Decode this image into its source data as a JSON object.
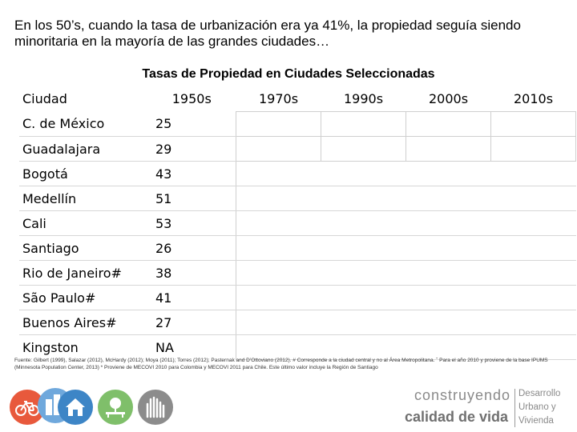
{
  "heading": "En los 50’s, cuando la tasa de urbanización era ya 41%, la propiedad seguía siendo minoritaria en la mayoría de las grandes ciudades…",
  "table": {
    "title": "Tasas de Propiedad en Ciudades Seleccionadas",
    "headers": [
      "Ciudad",
      "1950s",
      "1970s",
      "1990s",
      "2000s",
      "2010s"
    ],
    "rows": [
      {
        "city": "C. de México",
        "v1950": "25"
      },
      {
        "city": "Guadalajara",
        "v1950": "29"
      },
      {
        "city": "Bogotá",
        "v1950": "43"
      },
      {
        "city": "Medellín",
        "v1950": "51"
      },
      {
        "city": "Cali",
        "v1950": "53"
      },
      {
        "city": "Santiago",
        "v1950": "26"
      },
      {
        "city": "Rio de Janeiro#",
        "v1950": "38"
      },
      {
        "city": "São Paulo#",
        "v1950": "41"
      },
      {
        "city": "Buenos Aires#",
        "v1950": "27"
      },
      {
        "city": "Kingston",
        "v1950": "NA"
      }
    ]
  },
  "source": "Fuente: Gilbert (1999), Salazar (2012), McHardy (2012); Moya (2011); Torres (2012); Pasternak and D’Ottoviano (2012). # Corresponde a la ciudad central y no al Área Metropolitana. ˆ Para el año 2010 y proviene de la base IPUMS (Minnesota Population Center, 2013) * Proviene de MECOVI 2010 para Colombia y MECOVI 2011 para Chile. Este último valor incluye la Región de Santiago",
  "icons": [
    {
      "name": "bicycle-icon",
      "color": "#e8593c"
    },
    {
      "name": "buildings-icon",
      "color": "#6fa8dc"
    },
    {
      "name": "house-icon",
      "color": "#3d85c6"
    },
    {
      "name": "park-icon",
      "color": "#7fbf6a"
    },
    {
      "name": "hands-icon",
      "color": "#8c8c8c"
    }
  ],
  "brand": {
    "line1": "construyendo",
    "line2": "calidad de vida",
    "right_line1": "Desarrollo",
    "right_line2": "Urbano y",
    "right_line3": "Vivienda"
  }
}
